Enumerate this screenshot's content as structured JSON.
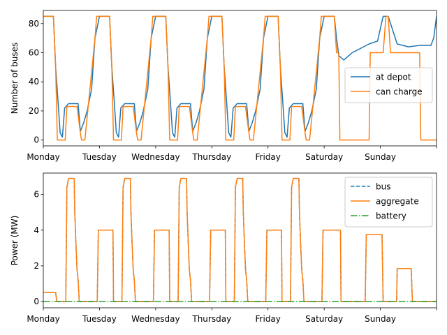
{
  "chart_data": [
    {
      "type": "line",
      "ylabel": "Number of buses",
      "xlabel": "",
      "x_tick_labels": [
        "Monday",
        "Tuesday",
        "Wednesday",
        "Thursday",
        "Friday",
        "Saturday",
        "Sunday"
      ],
      "xlim": [
        0,
        7
      ],
      "ylim": [
        -4,
        89
      ],
      "yticks": [
        0,
        20,
        40,
        60,
        80
      ],
      "legend": {
        "placement": "center-right",
        "entries": [
          "at depot",
          "can charge"
        ]
      },
      "series": [
        {
          "name": "at depot",
          "color": "#1f77b4",
          "dash": "solid",
          "x": [
            0,
            0.18,
            0.22,
            0.26,
            0.3,
            0.34,
            0.38,
            0.45,
            0.55,
            0.62,
            0.66,
            0.72,
            0.78,
            0.86,
            0.92,
            1.0,
            1.18,
            1.22,
            1.26,
            1.3,
            1.34,
            1.38,
            1.45,
            1.55,
            1.62,
            1.66,
            1.72,
            1.78,
            1.86,
            1.92,
            2.0,
            2.18,
            2.22,
            2.26,
            2.3,
            2.34,
            2.38,
            2.45,
            2.55,
            2.62,
            2.66,
            2.72,
            2.78,
            2.86,
            2.92,
            3.0,
            3.18,
            3.22,
            3.26,
            3.3,
            3.34,
            3.38,
            3.45,
            3.55,
            3.62,
            3.66,
            3.72,
            3.78,
            3.86,
            3.92,
            4.0,
            4.18,
            4.22,
            4.26,
            4.3,
            4.34,
            4.38,
            4.45,
            4.55,
            4.62,
            4.66,
            4.72,
            4.78,
            4.86,
            4.92,
            5.0,
            5.18,
            5.22,
            5.26,
            5.35,
            5.5,
            5.65,
            5.8,
            5.95,
            6.05,
            6.1,
            6.14,
            6.3,
            6.5,
            6.7,
            6.9,
            6.95,
            7.0
          ],
          "y": [
            85,
            85,
            50,
            28,
            5,
            2,
            22,
            25,
            25,
            25,
            6,
            12,
            20,
            35,
            70,
            85,
            85,
            50,
            28,
            5,
            2,
            22,
            25,
            25,
            25,
            6,
            12,
            20,
            35,
            70,
            85,
            85,
            50,
            28,
            5,
            2,
            22,
            25,
            25,
            25,
            6,
            12,
            20,
            35,
            70,
            85,
            85,
            50,
            28,
            5,
            2,
            22,
            25,
            25,
            25,
            6,
            12,
            20,
            35,
            70,
            85,
            85,
            50,
            28,
            5,
            2,
            22,
            25,
            25,
            25,
            6,
            12,
            20,
            35,
            70,
            85,
            85,
            70,
            58,
            55,
            60,
            63,
            66,
            68,
            85,
            85,
            85,
            66,
            64,
            65,
            65,
            70,
            85
          ]
        },
        {
          "name": "can charge",
          "color": "#ff7f0e",
          "dash": "solid",
          "x": [
            0,
            0.18,
            0.22,
            0.25,
            0.39,
            0.42,
            0.6,
            0.66,
            0.68,
            0.74,
            0.92,
            0.95,
            1.0,
            1.18,
            1.22,
            1.25,
            1.39,
            1.42,
            1.6,
            1.66,
            1.68,
            1.74,
            1.92,
            1.95,
            2.0,
            2.18,
            2.22,
            2.25,
            2.39,
            2.42,
            2.6,
            2.66,
            2.68,
            2.74,
            2.92,
            2.95,
            3.0,
            3.18,
            3.22,
            3.25,
            3.39,
            3.42,
            3.6,
            3.66,
            3.68,
            3.74,
            3.92,
            3.95,
            4.0,
            4.18,
            4.22,
            4.25,
            4.39,
            4.42,
            4.6,
            4.66,
            4.68,
            4.74,
            4.92,
            4.95,
            5.0,
            5.18,
            5.22,
            5.26,
            5.28,
            5.8,
            5.82,
            6.05,
            6.1,
            6.14,
            6.18,
            6.2,
            6.7,
            6.72,
            6.9,
            7.0
          ],
          "y": [
            85,
            85,
            50,
            0,
            0,
            23,
            23,
            5,
            0,
            0,
            70,
            85,
            85,
            85,
            50,
            0,
            0,
            23,
            23,
            5,
            0,
            0,
            70,
            85,
            85,
            85,
            50,
            0,
            0,
            23,
            23,
            5,
            0,
            0,
            70,
            85,
            85,
            85,
            50,
            0,
            0,
            23,
            23,
            5,
            0,
            0,
            70,
            85,
            85,
            85,
            50,
            0,
            0,
            23,
            23,
            5,
            0,
            0,
            70,
            85,
            85,
            85,
            60,
            60,
            0,
            0,
            60,
            60,
            85,
            85,
            60,
            60,
            60,
            0,
            0,
            0
          ]
        }
      ]
    },
    {
      "type": "line",
      "ylabel": "Power (MW)",
      "xlabel": "",
      "x_tick_labels": [
        "Monday",
        "Tuesday",
        "Wednesday",
        "Thursday",
        "Friday",
        "Saturday",
        "Sunday"
      ],
      "xlim": [
        0,
        7
      ],
      "ylim": [
        -0.35,
        7.2
      ],
      "yticks": [
        0,
        2,
        4,
        6
      ],
      "legend": {
        "placement": "top-right",
        "entries": [
          "bus",
          "aggregate",
          "battery"
        ]
      },
      "series": [
        {
          "name": "bus",
          "color": "#1f77b4",
          "dash": "dashed",
          "x": [
            0,
            0.22,
            0.24,
            0.4,
            0.42,
            0.45,
            0.55,
            0.56,
            0.58,
            0.6,
            0.62,
            0.64,
            0.66,
            0.96,
            0.98,
            1.24,
            1.25,
            1.4,
            1.42,
            1.45,
            1.55,
            1.56,
            1.58,
            1.6,
            1.62,
            1.64,
            1.66,
            1.96,
            1.98,
            2.24,
            2.25,
            2.4,
            2.42,
            2.45,
            2.55,
            2.56,
            2.58,
            2.6,
            2.62,
            2.64,
            2.66,
            2.96,
            2.98,
            3.24,
            3.25,
            3.4,
            3.42,
            3.45,
            3.55,
            3.56,
            3.58,
            3.6,
            3.62,
            3.64,
            3.66,
            3.96,
            3.98,
            4.24,
            4.25,
            4.4,
            4.42,
            4.45,
            4.55,
            4.56,
            4.58,
            4.6,
            4.62,
            4.64,
            4.66,
            4.96,
            4.98,
            5.29,
            5.3,
            5.73,
            5.75,
            6.03,
            6.05,
            6.29,
            6.3,
            6.55,
            6.57,
            7.0
          ],
          "y": [
            0.5,
            0.5,
            0.0,
            0.0,
            6.4,
            6.9,
            6.9,
            5.0,
            3.3,
            1.8,
            1.2,
            0.0,
            0.0,
            0.0,
            4.0,
            4.0,
            0.0,
            0.0,
            6.4,
            6.9,
            6.9,
            5.0,
            3.3,
            1.8,
            1.2,
            0.0,
            0.0,
            0.0,
            4.0,
            4.0,
            0.0,
            0.0,
            6.4,
            6.9,
            6.9,
            5.0,
            3.3,
            1.8,
            1.2,
            0.0,
            0.0,
            0.0,
            4.0,
            4.0,
            0.0,
            0.0,
            6.4,
            6.9,
            6.9,
            5.0,
            3.3,
            1.8,
            1.2,
            0.0,
            0.0,
            0.0,
            4.0,
            4.0,
            0.0,
            0.0,
            6.4,
            6.9,
            6.9,
            5.0,
            3.3,
            1.8,
            1.2,
            0.0,
            0.0,
            0.0,
            4.0,
            4.0,
            0.0,
            0.0,
            3.75,
            3.75,
            0.0,
            0.0,
            1.85,
            1.85,
            0.0,
            0.0
          ]
        },
        {
          "name": "aggregate",
          "color": "#ff7f0e",
          "dash": "solid",
          "x": [
            0,
            0.22,
            0.24,
            0.4,
            0.42,
            0.45,
            0.55,
            0.56,
            0.58,
            0.6,
            0.62,
            0.64,
            0.66,
            0.96,
            0.98,
            1.24,
            1.25,
            1.4,
            1.42,
            1.45,
            1.55,
            1.56,
            1.58,
            1.6,
            1.62,
            1.64,
            1.66,
            1.96,
            1.98,
            2.24,
            2.25,
            2.4,
            2.42,
            2.45,
            2.55,
            2.56,
            2.58,
            2.6,
            2.62,
            2.64,
            2.66,
            2.96,
            2.98,
            3.24,
            3.25,
            3.4,
            3.42,
            3.45,
            3.55,
            3.56,
            3.58,
            3.6,
            3.62,
            3.64,
            3.66,
            3.96,
            3.98,
            4.24,
            4.25,
            4.4,
            4.42,
            4.45,
            4.55,
            4.56,
            4.58,
            4.6,
            4.62,
            4.64,
            4.66,
            4.96,
            4.98,
            5.29,
            5.3,
            5.73,
            5.75,
            6.03,
            6.05,
            6.29,
            6.3,
            6.55,
            6.57,
            7.0
          ],
          "y": [
            0.5,
            0.5,
            0.0,
            0.0,
            6.4,
            6.9,
            6.9,
            5.0,
            3.3,
            1.8,
            1.2,
            0.0,
            0.0,
            0.0,
            4.0,
            4.0,
            0.0,
            0.0,
            6.4,
            6.9,
            6.9,
            5.0,
            3.3,
            1.8,
            1.2,
            0.0,
            0.0,
            0.0,
            4.0,
            4.0,
            0.0,
            0.0,
            6.4,
            6.9,
            6.9,
            5.0,
            3.3,
            1.8,
            1.2,
            0.0,
            0.0,
            0.0,
            4.0,
            4.0,
            0.0,
            0.0,
            6.4,
            6.9,
            6.9,
            5.0,
            3.3,
            1.8,
            1.2,
            0.0,
            0.0,
            0.0,
            4.0,
            4.0,
            0.0,
            0.0,
            6.4,
            6.9,
            6.9,
            5.0,
            3.3,
            1.8,
            1.2,
            0.0,
            0.0,
            0.0,
            4.0,
            4.0,
            0.0,
            0.0,
            3.75,
            3.75,
            0.0,
            0.0,
            1.85,
            1.85,
            0.0,
            0.0
          ]
        },
        {
          "name": "battery",
          "color": "#2ca02c",
          "dash": "dashdot",
          "x": [
            0,
            7.0
          ],
          "y": [
            0.0,
            0.0
          ]
        }
      ]
    }
  ]
}
